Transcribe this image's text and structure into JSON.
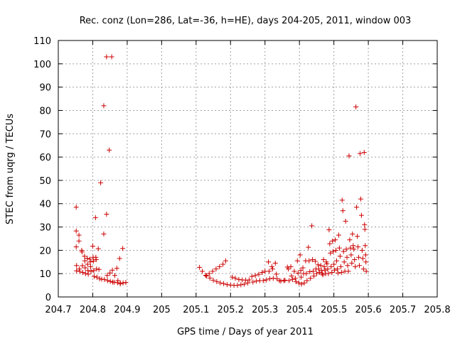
{
  "chart_data": {
    "type": "scatter",
    "title": "Rec. conz (Lon=286, Lat=-36, h=HE), days 204-205, 2011, window 003",
    "xlabel": "GPS time / Days of year 2011",
    "ylabel": "STEC from uqrg / TECUs",
    "xlim": [
      204.7,
      205.8
    ],
    "ylim": [
      0,
      110
    ],
    "xticks": [
      204.7,
      204.8,
      204.9,
      205,
      205.1,
      205.2,
      205.3,
      205.4,
      205.5,
      205.6,
      205.7,
      205.8
    ],
    "xtick_labels": [
      "204.7",
      "204.8",
      "204.9",
      "205",
      "205.1",
      "205.2",
      "205.3",
      "205.4",
      "205.5",
      "205.6",
      "205.7",
      "205.8"
    ],
    "yticks": [
      0,
      10,
      20,
      30,
      40,
      50,
      60,
      70,
      80,
      90,
      100,
      110
    ],
    "ytick_labels": [
      "0",
      "10",
      "20",
      "30",
      "40",
      "50",
      "60",
      "70",
      "80",
      "90",
      "100",
      "110"
    ],
    "grid": true,
    "marker": "+",
    "color": "#cc0000",
    "points": [
      [
        204.752,
        38.5
      ],
      [
        204.752,
        28.3
      ],
      [
        204.752,
        21.5
      ],
      [
        204.753,
        13.5
      ],
      [
        204.753,
        11.2
      ],
      [
        204.76,
        26.5
      ],
      [
        204.76,
        24.0
      ],
      [
        204.761,
        12.0
      ],
      [
        204.762,
        11.0
      ],
      [
        204.768,
        20.0
      ],
      [
        204.769,
        19.3
      ],
      [
        204.77,
        13.4
      ],
      [
        204.771,
        10.5
      ],
      [
        204.776,
        17.5
      ],
      [
        204.777,
        15.5
      ],
      [
        204.778,
        12.5
      ],
      [
        204.779,
        10.0
      ],
      [
        204.784,
        16.6
      ],
      [
        204.785,
        14.0
      ],
      [
        204.786,
        11.3
      ],
      [
        204.787,
        9.8
      ],
      [
        204.792,
        16.2
      ],
      [
        204.793,
        15.0
      ],
      [
        204.794,
        13.0
      ],
      [
        204.795,
        11.0
      ],
      [
        204.8,
        21.8
      ],
      [
        204.801,
        17.0
      ],
      [
        204.802,
        15.4
      ],
      [
        204.803,
        11.3
      ],
      [
        204.804,
        8.8
      ],
      [
        204.808,
        34.0
      ],
      [
        204.809,
        17.0
      ],
      [
        204.81,
        16.0
      ],
      [
        204.811,
        12.0
      ],
      [
        204.812,
        8.5
      ],
      [
        204.816,
        20.7
      ],
      [
        204.818,
        11.8
      ],
      [
        204.82,
        7.8
      ],
      [
        204.823,
        49.0
      ],
      [
        204.826,
        7.6
      ],
      [
        204.832,
        82.0
      ],
      [
        204.832,
        27.0
      ],
      [
        204.834,
        7.5
      ],
      [
        204.84,
        103.0
      ],
      [
        204.84,
        35.5
      ],
      [
        204.842,
        9.2
      ],
      [
        204.843,
        7.0
      ],
      [
        204.848,
        63.0
      ],
      [
        204.85,
        10.3
      ],
      [
        204.851,
        6.7
      ],
      [
        204.855,
        103.0
      ],
      [
        204.857,
        11.5
      ],
      [
        204.858,
        6.4
      ],
      [
        204.862,
        6.3
      ],
      [
        204.864,
        9.2
      ],
      [
        204.87,
        12.3
      ],
      [
        204.872,
        6.1
      ],
      [
        204.873,
        7.0
      ],
      [
        204.878,
        16.5
      ],
      [
        204.88,
        5.6
      ],
      [
        204.88,
        6.0
      ],
      [
        204.887,
        20.8
      ],
      [
        204.888,
        6.0
      ],
      [
        204.896,
        6.2
      ],
      [
        205.11,
        12.7
      ],
      [
        205.118,
        11.0
      ],
      [
        205.128,
        9.3
      ],
      [
        205.13,
        9.0
      ],
      [
        205.138,
        10.0
      ],
      [
        205.14,
        8.1
      ],
      [
        205.148,
        11.0
      ],
      [
        205.15,
        7.2
      ],
      [
        205.158,
        12.0
      ],
      [
        205.16,
        6.6
      ],
      [
        205.168,
        13.0
      ],
      [
        205.17,
        6.0
      ],
      [
        205.178,
        14.0
      ],
      [
        205.18,
        5.7
      ],
      [
        205.186,
        15.5
      ],
      [
        205.19,
        5.3
      ],
      [
        205.2,
        5.1
      ],
      [
        205.205,
        8.5
      ],
      [
        205.21,
        5.0
      ],
      [
        205.214,
        8.0
      ],
      [
        205.22,
        5.0
      ],
      [
        205.224,
        7.5
      ],
      [
        205.23,
        5.2
      ],
      [
        205.234,
        7.3
      ],
      [
        205.24,
        5.5
      ],
      [
        205.244,
        7.2
      ],
      [
        205.25,
        6.0
      ],
      [
        205.254,
        7.3
      ],
      [
        205.262,
        8.8
      ],
      [
        205.265,
        6.4
      ],
      [
        205.272,
        9.2
      ],
      [
        205.275,
        6.8
      ],
      [
        205.282,
        9.7
      ],
      [
        205.285,
        7.0
      ],
      [
        205.292,
        10.5
      ],
      [
        205.295,
        7.0
      ],
      [
        205.3,
        11.0
      ],
      [
        205.304,
        7.3
      ],
      [
        205.31,
        15.0
      ],
      [
        205.312,
        11.0
      ],
      [
        205.314,
        7.8
      ],
      [
        205.32,
        13.0
      ],
      [
        205.322,
        12.0
      ],
      [
        205.324,
        8.0
      ],
      [
        205.33,
        14.5
      ],
      [
        205.333,
        9.8
      ],
      [
        205.335,
        7.8
      ],
      [
        205.342,
        7.0
      ],
      [
        205.346,
        6.8
      ],
      [
        205.355,
        7.0
      ],
      [
        205.358,
        7.2
      ],
      [
        205.365,
        12.8
      ],
      [
        205.368,
        12.0
      ],
      [
        205.37,
        7.0
      ],
      [
        205.375,
        13.0
      ],
      [
        205.377,
        9.0
      ],
      [
        205.38,
        7.5
      ],
      [
        205.385,
        11.0
      ],
      [
        205.388,
        8.0
      ],
      [
        205.39,
        6.5
      ],
      [
        205.394,
        15.5
      ],
      [
        205.396,
        10.2
      ],
      [
        205.398,
        6.0
      ],
      [
        205.402,
        18.0
      ],
      [
        205.404,
        11.4
      ],
      [
        205.405,
        8.5
      ],
      [
        205.406,
        5.5
      ],
      [
        205.41,
        12.5
      ],
      [
        205.412,
        10.0
      ],
      [
        205.414,
        6.0
      ],
      [
        205.418,
        15.5
      ],
      [
        205.42,
        10.0
      ],
      [
        205.422,
        7.0
      ],
      [
        205.426,
        21.3
      ],
      [
        205.428,
        15.5
      ],
      [
        205.43,
        10.8
      ],
      [
        205.432,
        8.0
      ],
      [
        205.436,
        30.5
      ],
      [
        205.438,
        16.0
      ],
      [
        205.44,
        11.0
      ],
      [
        205.442,
        9.0
      ],
      [
        205.446,
        15.3
      ],
      [
        205.448,
        12.0
      ],
      [
        205.45,
        10.0
      ],
      [
        205.454,
        13.8
      ],
      [
        205.456,
        12.0
      ],
      [
        205.458,
        10.5
      ],
      [
        205.462,
        13.5
      ],
      [
        205.464,
        11.3
      ],
      [
        205.466,
        10.0
      ],
      [
        205.468,
        9.5
      ],
      [
        205.47,
        16.0
      ],
      [
        205.472,
        13.0
      ],
      [
        205.474,
        11.5
      ],
      [
        205.476,
        10.0
      ],
      [
        205.478,
        15.0
      ],
      [
        205.48,
        14.2
      ],
      [
        205.482,
        12.0
      ],
      [
        205.484,
        10.0
      ],
      [
        205.486,
        28.8
      ],
      [
        205.488,
        22.8
      ],
      [
        205.49,
        18.8
      ],
      [
        205.492,
        13.0
      ],
      [
        205.494,
        10.5
      ],
      [
        205.496,
        24.0
      ],
      [
        205.498,
        19.5
      ],
      [
        205.5,
        14.0
      ],
      [
        205.502,
        11.5
      ],
      [
        205.504,
        24.5
      ],
      [
        205.506,
        20.0
      ],
      [
        205.508,
        15.5
      ],
      [
        205.51,
        12.0
      ],
      [
        205.512,
        10.3
      ],
      [
        205.514,
        26.5
      ],
      [
        205.516,
        21.0
      ],
      [
        205.518,
        17.5
      ],
      [
        205.52,
        13.0
      ],
      [
        205.522,
        10.5
      ],
      [
        205.524,
        41.5
      ],
      [
        205.526,
        37.0
      ],
      [
        205.528,
        19.5
      ],
      [
        205.53,
        15.0
      ],
      [
        205.532,
        11.0
      ],
      [
        205.534,
        32.5
      ],
      [
        205.536,
        20.5
      ],
      [
        205.538,
        17.0
      ],
      [
        205.54,
        13.5
      ],
      [
        205.542,
        11.0
      ],
      [
        205.544,
        60.5
      ],
      [
        205.546,
        24.5
      ],
      [
        205.548,
        21.0
      ],
      [
        205.55,
        18.0
      ],
      [
        205.552,
        14.5
      ],
      [
        205.554,
        27.0
      ],
      [
        205.556,
        22.0
      ],
      [
        205.558,
        20.5
      ],
      [
        205.56,
        16.0
      ],
      [
        205.562,
        13.0
      ],
      [
        205.564,
        81.5
      ],
      [
        205.566,
        38.5
      ],
      [
        205.568,
        26.0
      ],
      [
        205.57,
        21.5
      ],
      [
        205.572,
        17.0
      ],
      [
        205.574,
        13.5
      ],
      [
        205.576,
        61.5
      ],
      [
        205.578,
        42.0
      ],
      [
        205.58,
        35.0
      ],
      [
        205.582,
        20.0
      ],
      [
        205.584,
        16.5
      ],
      [
        205.586,
        12.0
      ],
      [
        205.588,
        62.0
      ],
      [
        205.589,
        31.0
      ],
      [
        205.59,
        29.0
      ],
      [
        205.591,
        22.0
      ],
      [
        205.592,
        18.0
      ],
      [
        205.593,
        15.0
      ],
      [
        205.594,
        11.0
      ]
    ]
  }
}
